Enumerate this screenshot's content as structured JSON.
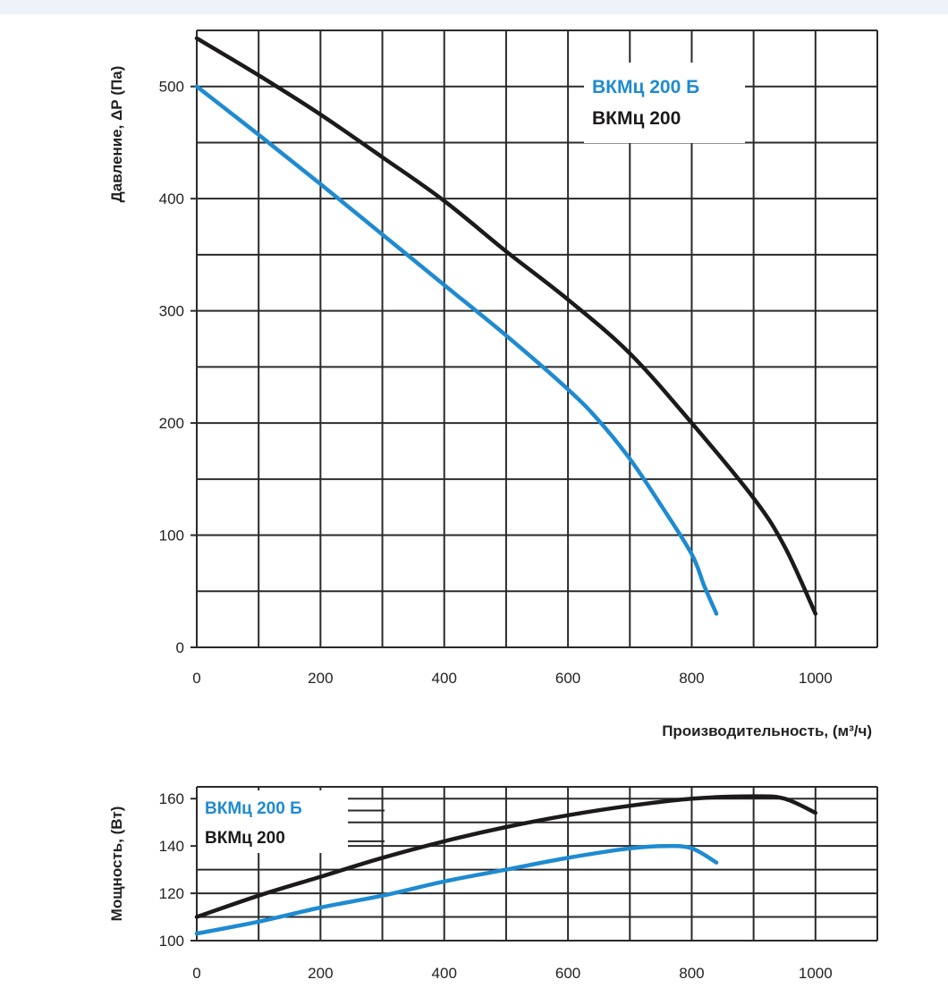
{
  "colors": {
    "series_blue": "#1e8bd1",
    "series_black": "#1c1a1b",
    "grid": "#2a2a2a"
  },
  "chart_data": [
    {
      "type": "line",
      "id": "pressure",
      "xlabel": "Производительность, (м³/ч)",
      "ylabel": "Давление, ΔР (Па)",
      "xlim": [
        0,
        1100
      ],
      "ylim": [
        0,
        550
      ],
      "x_ticks": [
        0,
        200,
        400,
        600,
        800,
        1000
      ],
      "y_ticks": [
        0,
        100,
        200,
        300,
        400,
        500
      ],
      "grid": true,
      "legend_position": "top-right",
      "series": [
        {
          "name": "ВКМц 200 Б",
          "color": "#1e8bd1",
          "x": [
            0,
            100,
            200,
            300,
            400,
            500,
            600,
            650,
            700,
            750,
            800,
            820,
            840
          ],
          "y": [
            500,
            457,
            413,
            368,
            323,
            278,
            230,
            202,
            168,
            127,
            83,
            55,
            30
          ]
        },
        {
          "name": "ВКМц 200",
          "color": "#1c1a1b",
          "x": [
            0,
            100,
            200,
            300,
            400,
            500,
            600,
            700,
            800,
            900,
            950,
            1000
          ],
          "y": [
            543,
            510,
            475,
            437,
            398,
            353,
            310,
            262,
            200,
            133,
            90,
            30
          ]
        }
      ]
    },
    {
      "type": "line",
      "id": "power",
      "xlabel": "",
      "ylabel": "Мощность, (Вт)",
      "xlim": [
        0,
        1100
      ],
      "ylim": [
        100,
        165
      ],
      "x_ticks": [
        0,
        200,
        400,
        600,
        800,
        1000
      ],
      "y_ticks": [
        100,
        120,
        140,
        160
      ],
      "grid": true,
      "legend_position": "top-left",
      "series": [
        {
          "name": "ВКМц 200 Б",
          "color": "#1e8bd1",
          "x": [
            0,
            100,
            200,
            300,
            400,
            500,
            600,
            700,
            760,
            800,
            840
          ],
          "y": [
            103,
            108,
            114,
            119,
            125,
            130,
            135,
            139,
            140,
            139,
            133
          ]
        },
        {
          "name": "ВКМц 200",
          "color": "#1c1a1b",
          "x": [
            0,
            100,
            200,
            300,
            400,
            500,
            600,
            700,
            800,
            900,
            950,
            1000
          ],
          "y": [
            110,
            119,
            127,
            135,
            142,
            148,
            153,
            157,
            160,
            161,
            160,
            154
          ]
        }
      ]
    }
  ]
}
